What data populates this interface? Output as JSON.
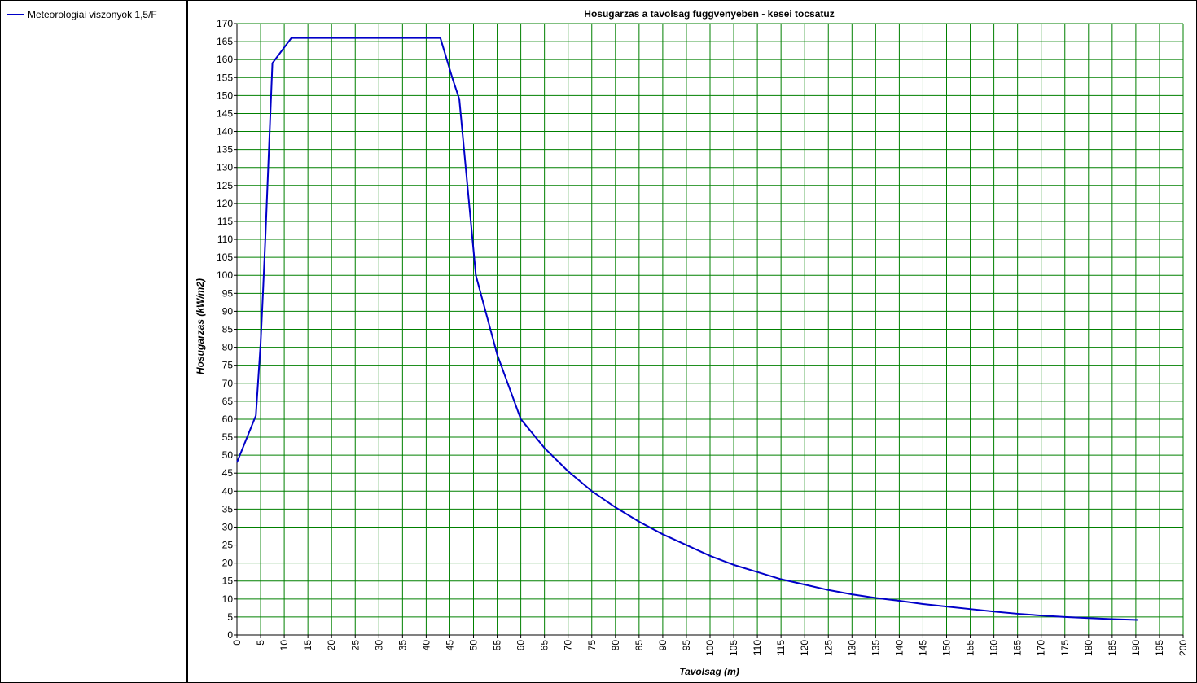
{
  "legend": {
    "entries": [
      {
        "label": "Meteorologiai viszonyok 1,5/F",
        "color": "#0000c8"
      }
    ]
  },
  "chart_data": {
    "type": "line",
    "title": "Hosugarzas a tavolsag fuggvenyeben - kesei tocsatuz",
    "xlabel": "Tavolsag (m)",
    "ylabel": "Hosugarzas (kW/m2)",
    "xlim": [
      0,
      200
    ],
    "ylim": [
      0,
      170
    ],
    "xticks": [
      0,
      5,
      10,
      15,
      20,
      25,
      30,
      35,
      40,
      45,
      50,
      55,
      60,
      65,
      70,
      75,
      80,
      85,
      90,
      95,
      100,
      105,
      110,
      115,
      120,
      125,
      130,
      135,
      140,
      145,
      150,
      155,
      160,
      165,
      170,
      175,
      180,
      185,
      190,
      195,
      200
    ],
    "yticks": [
      0,
      5,
      10,
      15,
      20,
      25,
      30,
      35,
      40,
      45,
      50,
      55,
      60,
      65,
      70,
      75,
      80,
      85,
      90,
      95,
      100,
      105,
      110,
      115,
      120,
      125,
      130,
      135,
      140,
      145,
      150,
      155,
      160,
      165,
      170
    ],
    "grid": true,
    "grid_color": "#008000",
    "legend_position": "left panel",
    "series": [
      {
        "name": "Meteorologiai viszonyok 1,5/F",
        "color": "#0000c8",
        "x": [
          0,
          4,
          5,
          5.5,
          6,
          7.5,
          11.5,
          43,
          45.5,
          47,
          50.5,
          55,
          60,
          65,
          70,
          75,
          80,
          85,
          90,
          95,
          100,
          105,
          110,
          115,
          120,
          125,
          130,
          135,
          140,
          145,
          150,
          155,
          160,
          165,
          170,
          175,
          180,
          185,
          190.5
        ],
        "y": [
          48,
          61,
          81,
          95,
          110,
          159,
          166,
          166,
          155,
          149,
          100,
          78,
          60,
          52,
          45.5,
          40,
          35.5,
          31.5,
          28,
          25,
          22,
          19.5,
          17.5,
          15.5,
          14,
          12.5,
          11.3,
          10.3,
          9.5,
          8.6,
          7.9,
          7.2,
          6.5,
          5.9,
          5.4,
          5.0,
          4.7,
          4.4,
          4.2
        ]
      }
    ]
  }
}
